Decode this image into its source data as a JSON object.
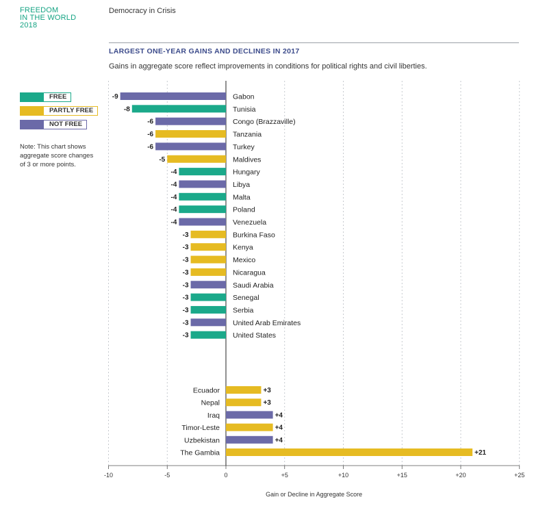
{
  "header": {
    "brand_line1": "FREEDOM",
    "brand_line2": "IN THE WORLD",
    "brand_line3": "2018",
    "section": "Democracy in Crisis"
  },
  "legend": {
    "free": "FREE",
    "partly_free": "PARTLY FREE",
    "not_free": "NOT FREE"
  },
  "note": "Note: This chart shows aggregate score changes of 3 or more points.",
  "colors": {
    "free": "#1ba98a",
    "partly_free": "#e6bb22",
    "not_free": "#6b6aa8",
    "brand": "#14a383",
    "title": "#3b4a8a"
  },
  "chart_data": {
    "type": "bar",
    "orientation": "horizontal",
    "title": "LARGEST ONE-YEAR GAINS AND DECLINES IN 2017",
    "subtitle": "Gains in aggregate score reflect improvements in conditions for political rights and civil liberties.",
    "xlabel": "Gain or Decline in Aggregate Score",
    "xlim": [
      -10,
      25
    ],
    "xticks": [
      "-10",
      "-5",
      "0",
      "+5",
      "+10",
      "+15",
      "+20",
      "+25"
    ],
    "grid": "vertical dashed",
    "declines": [
      {
        "country": "Gabon",
        "value": -9,
        "status": "not_free",
        "label": "-9"
      },
      {
        "country": "Tunisia",
        "value": -8,
        "status": "free",
        "label": "-8"
      },
      {
        "country": "Congo (Brazzaville)",
        "value": -6,
        "status": "not_free",
        "label": "-6"
      },
      {
        "country": "Tanzania",
        "value": -6,
        "status": "partly_free",
        "label": "-6"
      },
      {
        "country": "Turkey",
        "value": -6,
        "status": "not_free",
        "label": "-6"
      },
      {
        "country": "Maldives",
        "value": -5,
        "status": "partly_free",
        "label": "-5"
      },
      {
        "country": "Hungary",
        "value": -4,
        "status": "free",
        "label": "-4"
      },
      {
        "country": "Libya",
        "value": -4,
        "status": "not_free",
        "label": "-4"
      },
      {
        "country": "Malta",
        "value": -4,
        "status": "free",
        "label": "-4"
      },
      {
        "country": "Poland",
        "value": -4,
        "status": "free",
        "label": "-4"
      },
      {
        "country": "Venezuela",
        "value": -4,
        "status": "not_free",
        "label": "-4"
      },
      {
        "country": "Burkina Faso",
        "value": -3,
        "status": "partly_free",
        "label": "-3"
      },
      {
        "country": "Kenya",
        "value": -3,
        "status": "partly_free",
        "label": "-3"
      },
      {
        "country": "Mexico",
        "value": -3,
        "status": "partly_free",
        "label": "-3"
      },
      {
        "country": "Nicaragua",
        "value": -3,
        "status": "partly_free",
        "label": "-3"
      },
      {
        "country": "Saudi Arabia",
        "value": -3,
        "status": "not_free",
        "label": "-3"
      },
      {
        "country": "Senegal",
        "value": -3,
        "status": "free",
        "label": "-3"
      },
      {
        "country": "Serbia",
        "value": -3,
        "status": "free",
        "label": "-3"
      },
      {
        "country": "United Arab Emirates",
        "value": -3,
        "status": "not_free",
        "label": "-3"
      },
      {
        "country": "United States",
        "value": -3,
        "status": "free",
        "label": "-3"
      }
    ],
    "gains": [
      {
        "country": "Ecuador",
        "value": 3,
        "status": "partly_free",
        "label": "+3"
      },
      {
        "country": "Nepal",
        "value": 3,
        "status": "partly_free",
        "label": "+3"
      },
      {
        "country": "Iraq",
        "value": 4,
        "status": "not_free",
        "label": "+4"
      },
      {
        "country": "Timor-Leste",
        "value": 4,
        "status": "partly_free",
        "label": "+4"
      },
      {
        "country": "Uzbekistan",
        "value": 4,
        "status": "not_free",
        "label": "+4"
      },
      {
        "country": "The Gambia",
        "value": 21,
        "status": "partly_free",
        "label": "+21"
      }
    ]
  }
}
